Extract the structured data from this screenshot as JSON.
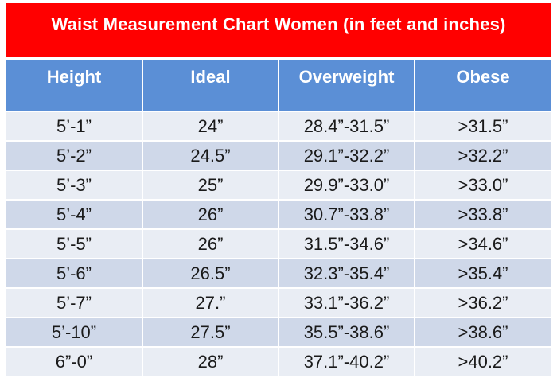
{
  "chart_data": {
    "type": "table",
    "title": "Waist Measurement Chart Women (in feet and inches)",
    "columns": [
      "Height",
      "Ideal",
      "Overweight",
      "Obese"
    ],
    "rows": [
      [
        "5’-1”",
        "24”",
        "28.4”-31.5”",
        ">31.5”"
      ],
      [
        "5’-2”",
        "24.5”",
        "29.1”-32.2”",
        ">32.2”"
      ],
      [
        "5’-3”",
        "25”",
        "29.9”-33.0”",
        ">33.0”"
      ],
      [
        "5’-4”",
        "26”",
        "30.7”-33.8”",
        ">33.8”"
      ],
      [
        "5’-5”",
        "26”",
        "31.5”-34.6”",
        ">34.6”"
      ],
      [
        "5’-6”",
        "26.5”",
        "32.3”-35.4”",
        ">35.4”"
      ],
      [
        "5’-7”",
        "27.”",
        "33.1”-36.2”",
        ">36.2”"
      ],
      [
        "5’-10”",
        "27.5”",
        "35.5”-38.6”",
        ">38.6”"
      ],
      [
        "6”-0”",
        "28”",
        "37.1”-40.2”",
        ">40.2”"
      ]
    ]
  },
  "colors": {
    "title_background": "#ff0000",
    "header_background": "#5b8fd6",
    "row_light": "#e9edf4",
    "row_dark": "#cfd8e9"
  }
}
